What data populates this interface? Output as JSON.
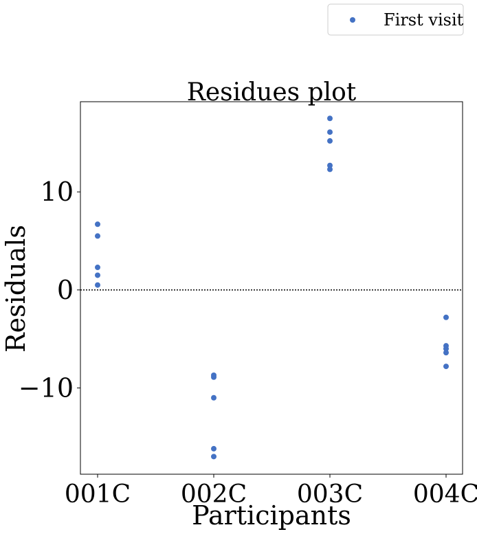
{
  "chart_data": {
    "type": "scatter",
    "title": "Residues plot",
    "xlabel": "Participants",
    "ylabel": "Residuals",
    "categories": [
      "001C",
      "002C",
      "003C",
      "004C"
    ],
    "ylim": [
      -18.8,
      19.2
    ],
    "yticks": [
      {
        "value": -10,
        "label": "−10"
      },
      {
        "value": 0,
        "label": "0"
      },
      {
        "value": 10,
        "label": "10"
      }
    ],
    "reference_line": {
      "y": 0,
      "style": "dotted",
      "color": "#000000"
    },
    "grid": false,
    "legend_position": "top-right, outside plot",
    "series": [
      {
        "name": "First visit",
        "color": "#4472C4",
        "points": [
          {
            "x": "001C",
            "y": 6.7
          },
          {
            "x": "001C",
            "y": 5.5
          },
          {
            "x": "001C",
            "y": 2.3
          },
          {
            "x": "001C",
            "y": 1.5
          },
          {
            "x": "001C",
            "y": 0.5
          },
          {
            "x": "002C",
            "y": -8.7
          },
          {
            "x": "002C",
            "y": -8.9
          },
          {
            "x": "002C",
            "y": -11.0
          },
          {
            "x": "002C",
            "y": -16.2
          },
          {
            "x": "002C",
            "y": -17.0
          },
          {
            "x": "003C",
            "y": 17.5
          },
          {
            "x": "003C",
            "y": 16.1
          },
          {
            "x": "003C",
            "y": 15.2
          },
          {
            "x": "003C",
            "y": 12.7
          },
          {
            "x": "003C",
            "y": 12.3
          },
          {
            "x": "004C",
            "y": -2.8
          },
          {
            "x": "004C",
            "y": -5.7
          },
          {
            "x": "004C",
            "y": -6.0
          },
          {
            "x": "004C",
            "y": -6.4
          },
          {
            "x": "004C",
            "y": -7.8
          }
        ]
      }
    ]
  }
}
